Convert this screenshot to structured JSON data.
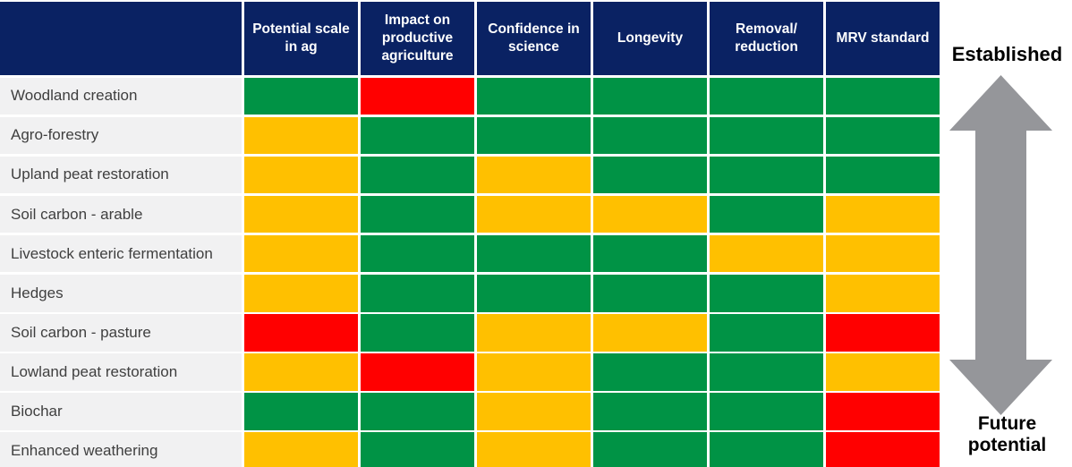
{
  "chart_data": {
    "type": "heatmap",
    "title": "",
    "columns": [
      "Potential scale in ag",
      "Impact on productive agriculture",
      "Confidence in science",
      "Longevity",
      "Removal/ reduction",
      "MRV standard"
    ],
    "rows": [
      "Woodland creation",
      "Agro-forestry",
      "Upland peat restoration",
      "Soil carbon - arable",
      "Livestock enteric fermentation",
      "Hedges",
      "Soil carbon - pasture",
      "Lowland peat restoration",
      "Biochar",
      "Enhanced weathering"
    ],
    "values": [
      [
        "green",
        "red",
        "green",
        "green",
        "green",
        "green"
      ],
      [
        "amber",
        "green",
        "green",
        "green",
        "green",
        "green"
      ],
      [
        "amber",
        "green",
        "amber",
        "green",
        "green",
        "green"
      ],
      [
        "amber",
        "green",
        "amber",
        "amber",
        "green",
        "amber"
      ],
      [
        "amber",
        "green",
        "green",
        "green",
        "amber",
        "amber"
      ],
      [
        "amber",
        "green",
        "green",
        "green",
        "green",
        "amber"
      ],
      [
        "red",
        "green",
        "amber",
        "amber",
        "green",
        "red"
      ],
      [
        "amber",
        "red",
        "amber",
        "green",
        "green",
        "amber"
      ],
      [
        "green",
        "green",
        "amber",
        "green",
        "green",
        "red"
      ],
      [
        "amber",
        "green",
        "amber",
        "green",
        "green",
        "red"
      ]
    ],
    "legend": {
      "top": "Established",
      "bottom": "Future potential"
    },
    "value_colors": {
      "green": "#009345",
      "amber": "#FFC000",
      "red": "#FF0000"
    },
    "layout": {
      "legend_position": "right",
      "grid": "white separators"
    }
  },
  "colors": {
    "header_bg": "#0A2263",
    "header_text": "#FFFFFF",
    "row_label_bg": "#F1F1F2",
    "row_label_text": "#3F3F3F",
    "arrow": "#95969A",
    "page_bg": "#FFFFFF"
  }
}
